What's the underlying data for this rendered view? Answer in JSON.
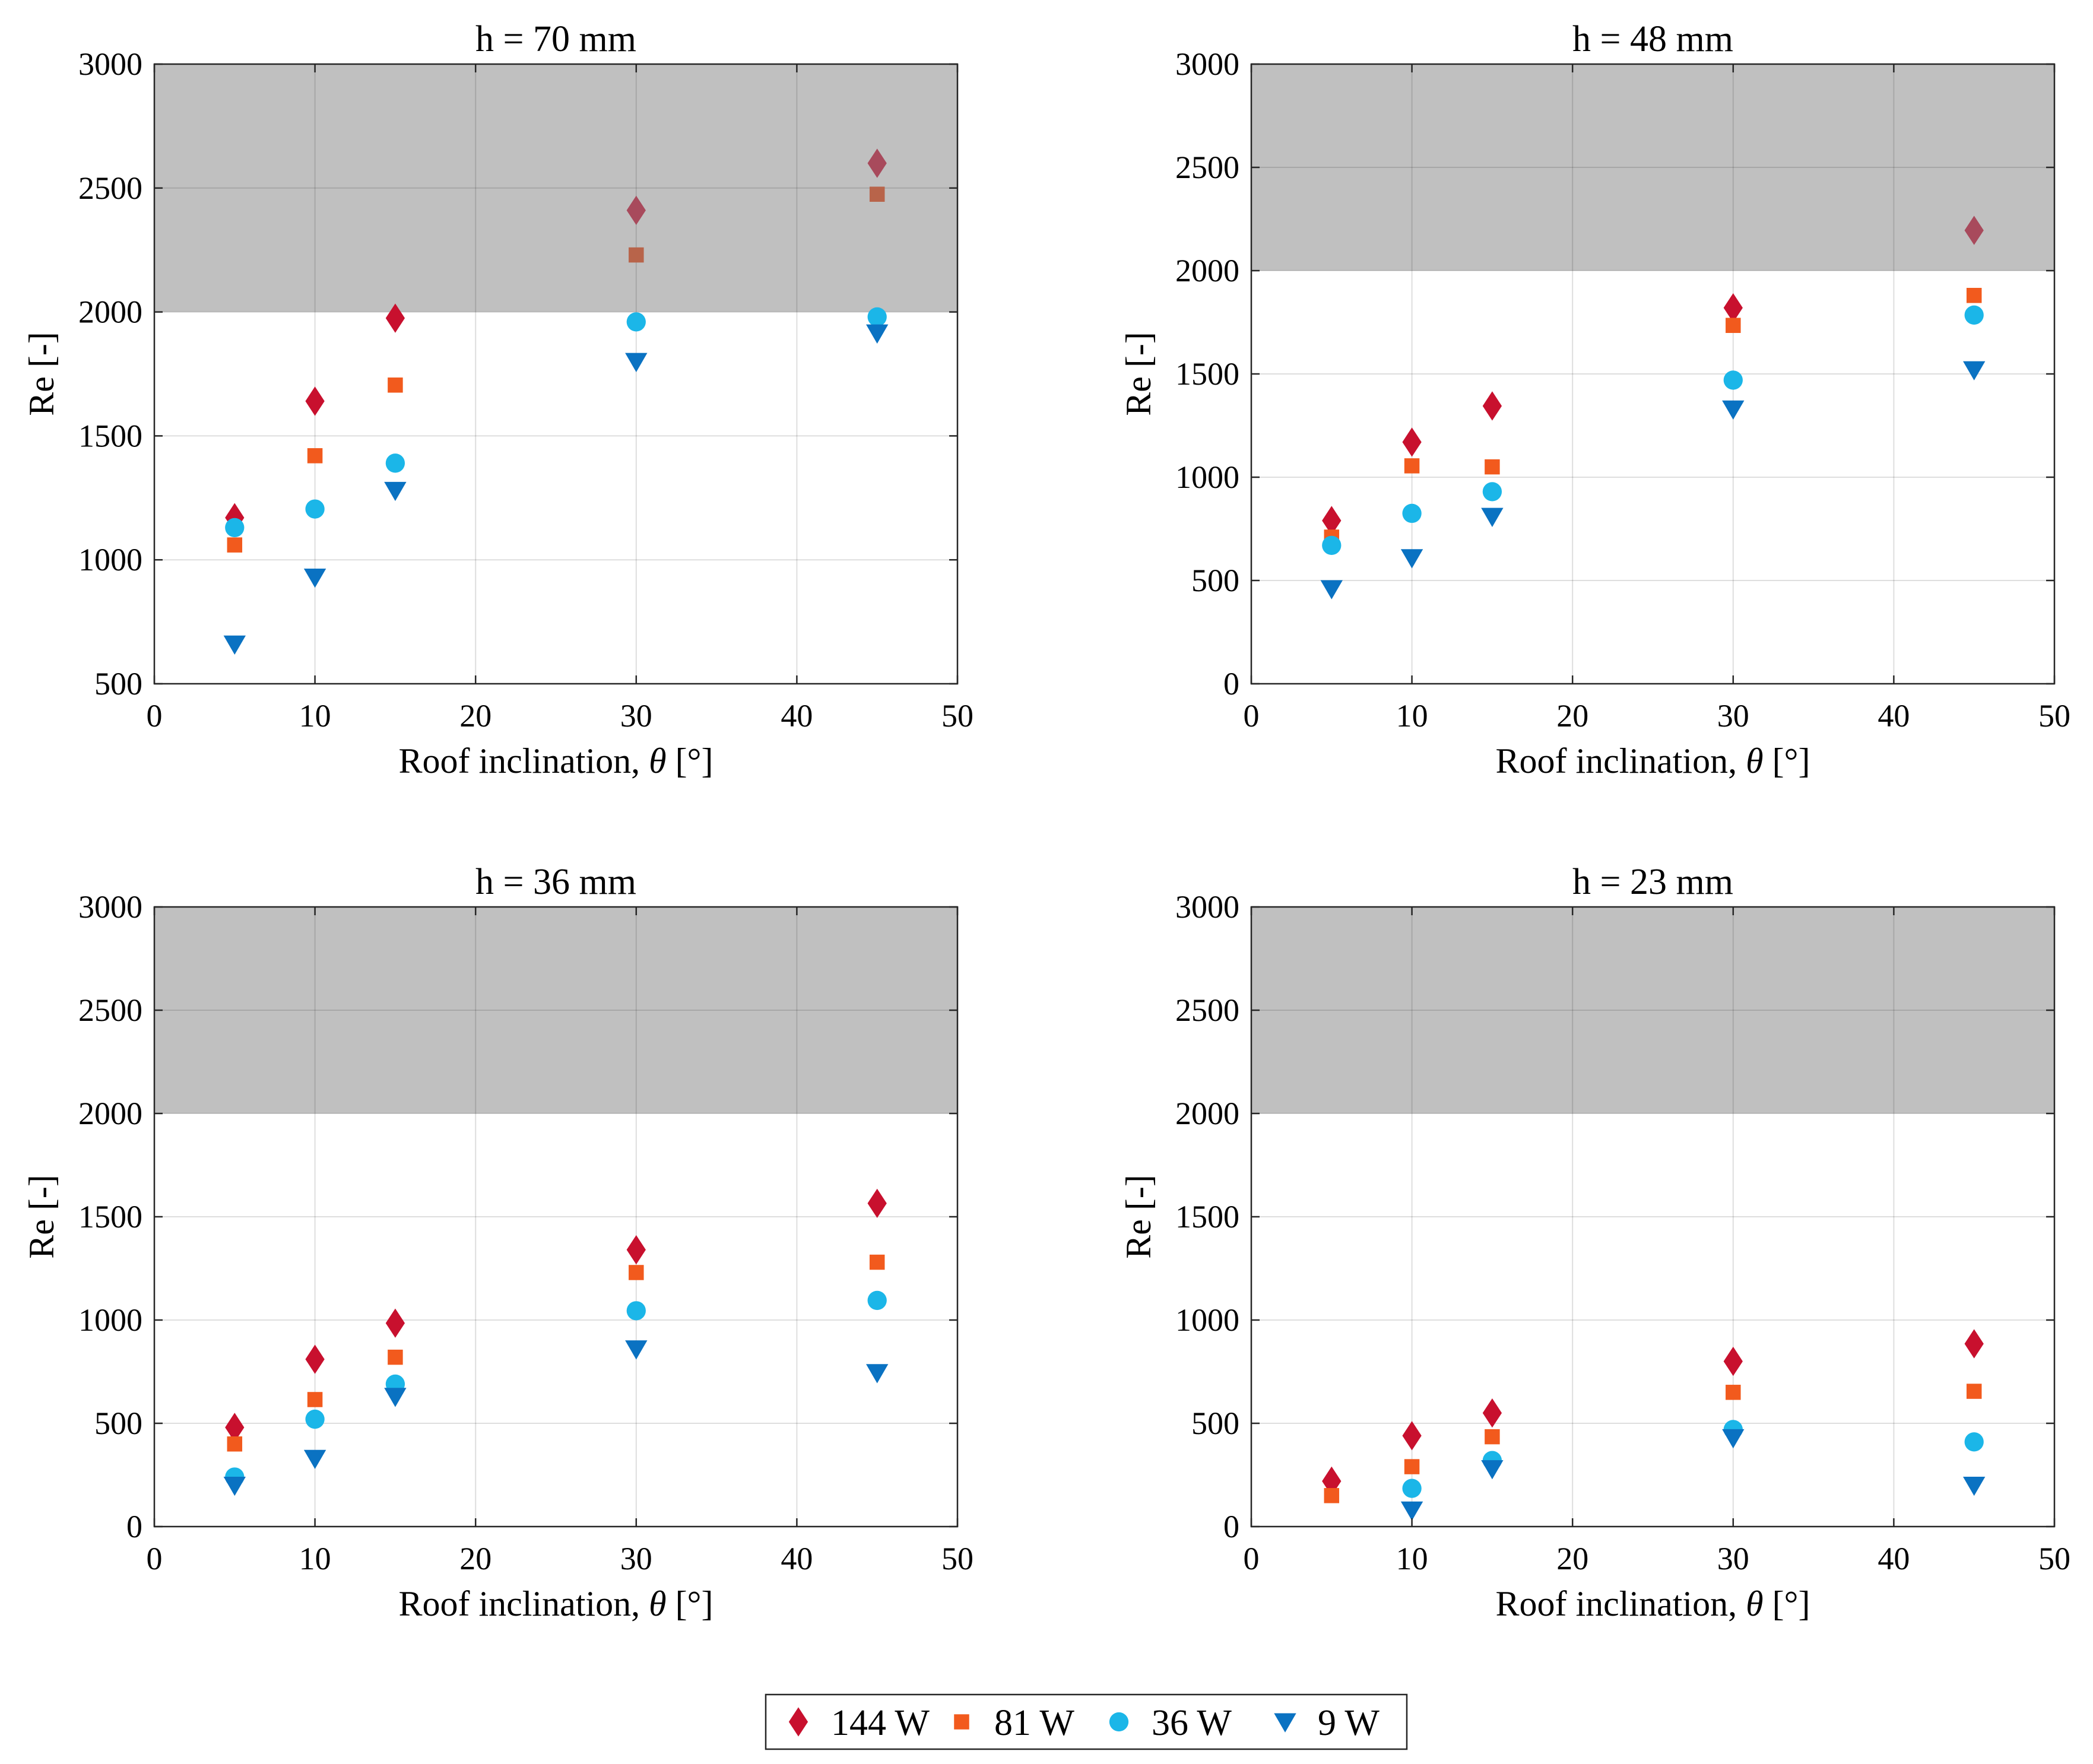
{
  "colors": {
    "144 W": "#c8102e",
    "81 W": "#f25a1d",
    "36 W": "#1bb6e8",
    "9 W": "#0a72c2",
    "shade": "#c0c0c0",
    "shade_points": "#a0606a"
  },
  "legend": {
    "entries": [
      {
        "label": "144 W",
        "marker": "diamond-icon",
        "color": "#c8102e"
      },
      {
        "label": "81 W",
        "marker": "square-icon",
        "color": "#f25a1d"
      },
      {
        "label": "36 W",
        "marker": "circle-icon",
        "color": "#1bb6e8"
      },
      {
        "label": "9 W",
        "marker": "triangle-down-icon",
        "color": "#0a72c2"
      }
    ]
  },
  "chart_data": [
    {
      "type": "scatter",
      "title": "h = 70 mm",
      "xlabel_prefix": "Roof inclination, ",
      "xlabel_symbol": "θ",
      "xlabel_suffix": " [°]",
      "ylabel": "Re [-]",
      "xlim": [
        0,
        50
      ],
      "ylim": [
        500,
        3000
      ],
      "xticks": [
        0,
        10,
        20,
        30,
        40,
        50
      ],
      "yticks": [
        500,
        1000,
        1500,
        2000,
        2500,
        3000
      ],
      "shaded_band": [
        2000,
        3000
      ],
      "grid": true,
      "x": [
        5,
        10,
        15,
        30,
        45
      ],
      "series": [
        {
          "name": "144 W",
          "values": [
            1170,
            1640,
            1975,
            2410,
            2600
          ]
        },
        {
          "name": "81 W",
          "values": [
            1060,
            1420,
            1705,
            2230,
            2475
          ]
        },
        {
          "name": "36 W",
          "values": [
            1130,
            1205,
            1390,
            1960,
            1980
          ]
        },
        {
          "name": "9 W",
          "values": [
            660,
            930,
            1280,
            1800,
            1915
          ]
        }
      ]
    },
    {
      "type": "scatter",
      "title": "h = 48 mm",
      "xlabel_prefix": "Roof inclination, ",
      "xlabel_symbol": "θ",
      "xlabel_suffix": " [°]",
      "ylabel": "Re [-]",
      "xlim": [
        0,
        50
      ],
      "ylim": [
        0,
        3000
      ],
      "xticks": [
        0,
        10,
        20,
        30,
        40,
        50
      ],
      "yticks": [
        0,
        500,
        1000,
        1500,
        2000,
        2500,
        3000
      ],
      "shaded_band": [
        2000,
        3000
      ],
      "grid": true,
      "x": [
        5,
        10,
        15,
        30,
        45
      ],
      "series": [
        {
          "name": "144 W",
          "values": [
            790,
            1170,
            1345,
            1820,
            2195
          ]
        },
        {
          "name": "81 W",
          "values": [
            710,
            1055,
            1050,
            1735,
            1880
          ]
        },
        {
          "name": "36 W",
          "values": [
            670,
            825,
            930,
            1470,
            1785
          ]
        },
        {
          "name": "9 W",
          "values": [
            460,
            610,
            810,
            1330,
            1520
          ]
        }
      ]
    },
    {
      "type": "scatter",
      "title": "h = 36 mm",
      "xlabel_prefix": "Roof inclination, ",
      "xlabel_symbol": "θ",
      "xlabel_suffix": " [°]",
      "ylabel": "Re [-]",
      "xlim": [
        0,
        50
      ],
      "ylim": [
        0,
        3000
      ],
      "xticks": [
        0,
        10,
        20,
        30,
        40,
        50
      ],
      "yticks": [
        0,
        500,
        1000,
        1500,
        2000,
        2500,
        3000
      ],
      "shaded_band": [
        2000,
        3000
      ],
      "grid": true,
      "x": [
        5,
        10,
        15,
        30,
        45
      ],
      "series": [
        {
          "name": "144 W",
          "values": [
            480,
            810,
            985,
            1340,
            1565
          ]
        },
        {
          "name": "81 W",
          "values": [
            400,
            615,
            820,
            1230,
            1280
          ]
        },
        {
          "name": "36 W",
          "values": [
            240,
            520,
            690,
            1045,
            1095
          ]
        },
        {
          "name": "9 W",
          "values": [
            200,
            330,
            630,
            860,
            745
          ]
        }
      ]
    },
    {
      "type": "scatter",
      "title": "h = 23 mm",
      "xlabel_prefix": "Roof inclination, ",
      "xlabel_symbol": "θ",
      "xlabel_suffix": " [°]",
      "ylabel": "Re [-]",
      "xlim": [
        0,
        50
      ],
      "ylim": [
        0,
        3000
      ],
      "xticks": [
        0,
        10,
        20,
        30,
        40,
        50
      ],
      "yticks": [
        0,
        500,
        1000,
        1500,
        2000,
        2500,
        3000
      ],
      "shaded_band": [
        2000,
        3000
      ],
      "grid": true,
      "x": [
        5,
        10,
        15,
        30,
        45
      ],
      "series": [
        {
          "name": "144 W",
          "values": [
            220,
            440,
            550,
            800,
            885
          ]
        },
        {
          "name": "81 W",
          "values": [
            150,
            290,
            435,
            650,
            655
          ]
        },
        {
          "name": "36 W",
          "values": null
        },
        {
          "name": "9 W",
          "values": null
        }
      ],
      "series_values": {
        "36 W": [
          null,
          185,
          320,
          470,
          410
        ],
        "9 W": [
          null,
          80,
          280,
          430,
          200
        ]
      }
    }
  ]
}
